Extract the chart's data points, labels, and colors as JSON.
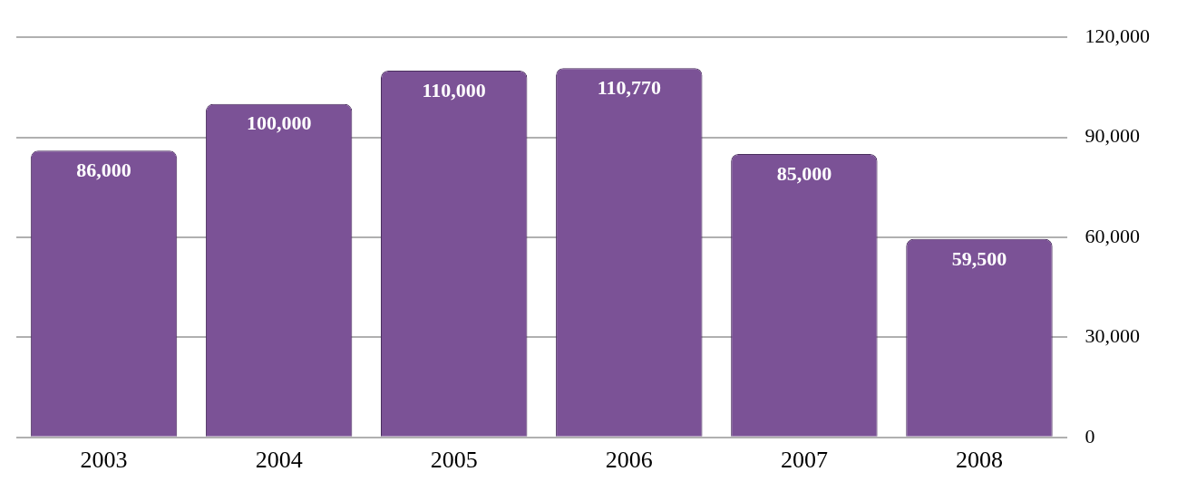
{
  "chart_data": {
    "type": "bar",
    "categories": [
      "2003",
      "2004",
      "2005",
      "2006",
      "2007",
      "2008"
    ],
    "values": [
      86000,
      100000,
      110000,
      110770,
      85000,
      59500
    ],
    "color": "#7b5296",
    "ylim": [
      0,
      120000
    ],
    "yticks": [
      {
        "value": 0,
        "label": "0"
      },
      {
        "value": 30000,
        "label": "30,000"
      },
      {
        "value": 60000,
        "label": "60,000"
      },
      {
        "value": 90000,
        "label": "90,000"
      },
      {
        "value": 120000,
        "label": "120,000"
      }
    ],
    "value_labels": [
      "86,000",
      "100,000",
      "110,000",
      "110,770",
      "85,000",
      "59,500"
    ],
    "grid": "y",
    "legend": false
  }
}
